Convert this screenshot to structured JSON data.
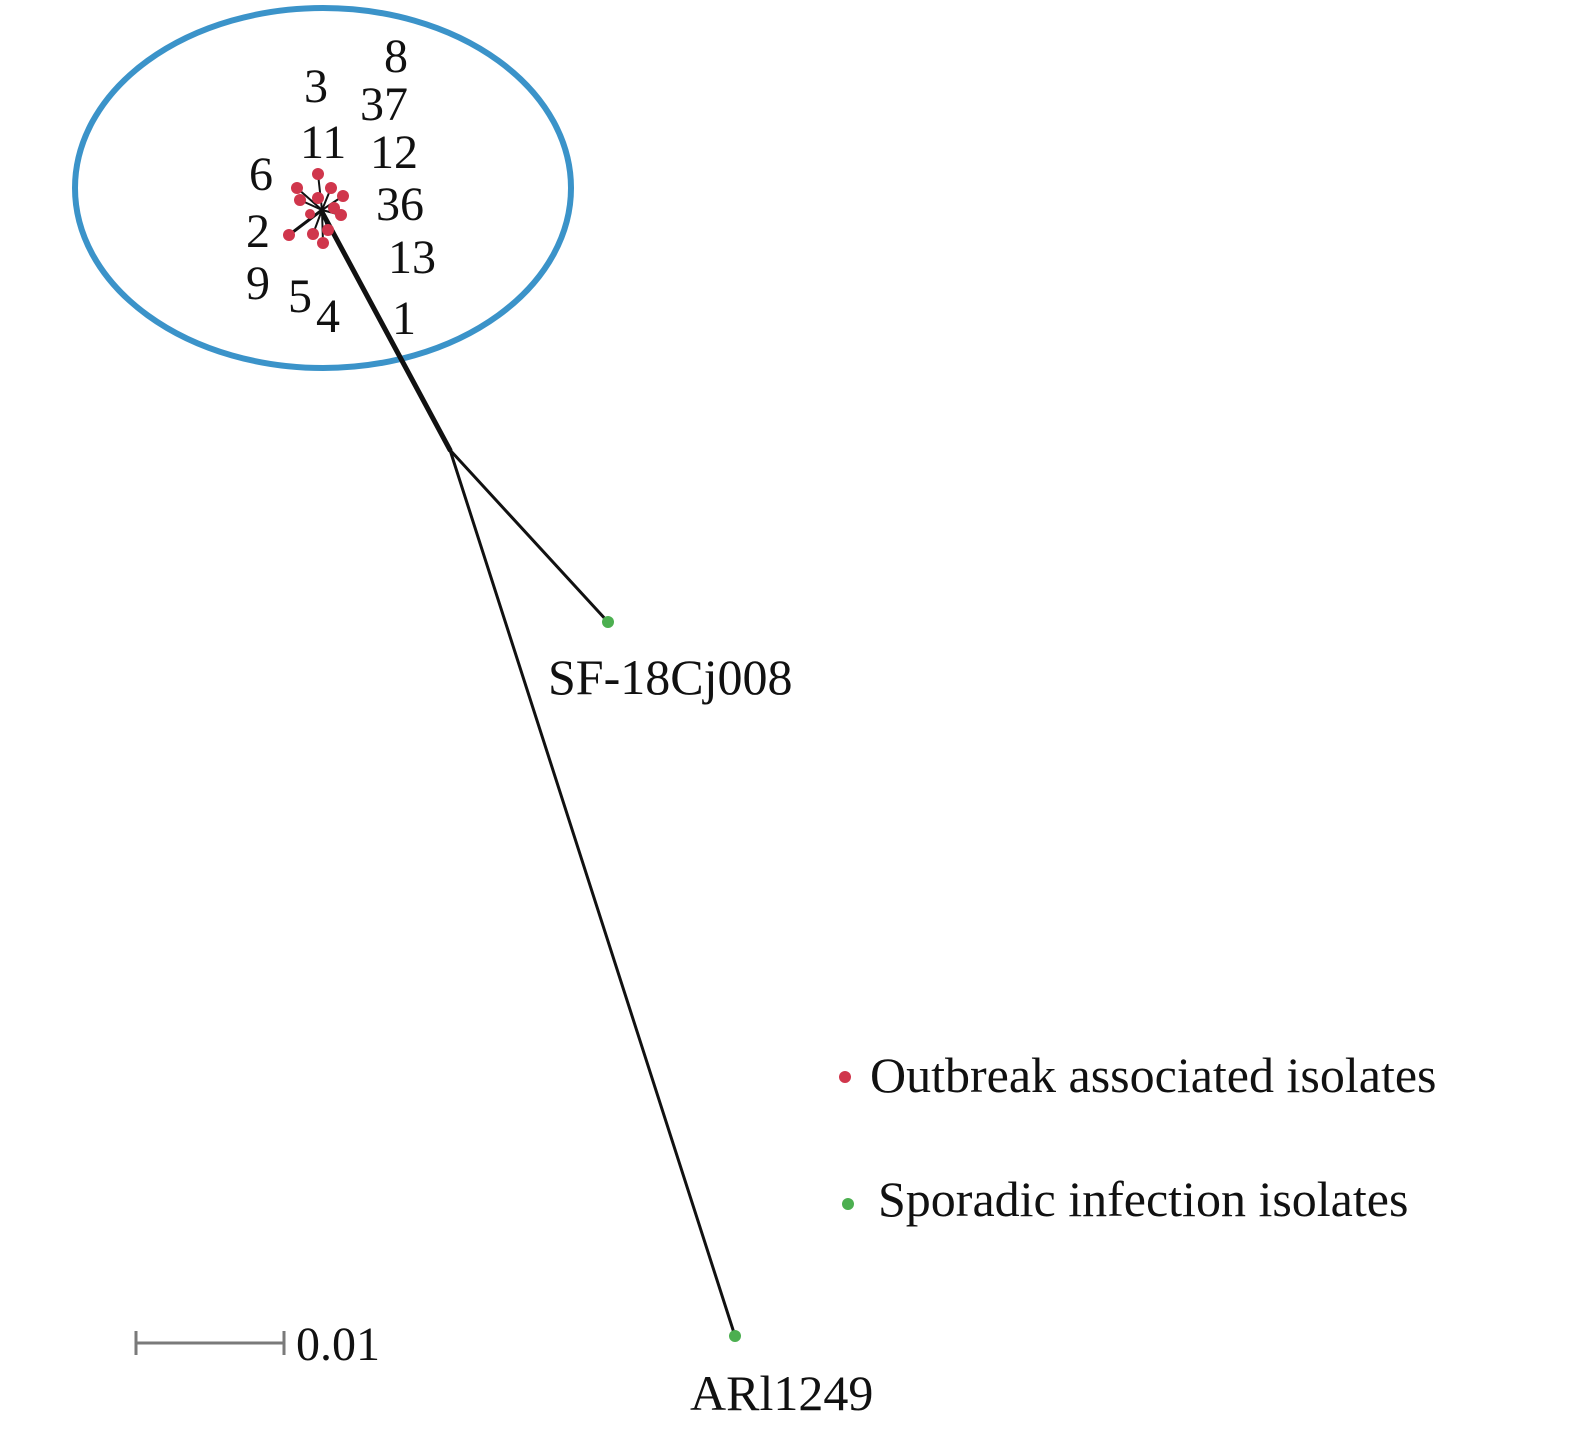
{
  "colors": {
    "cluster_ellipse": "#3b93c9",
    "outbreak_node": "#d0364c",
    "sporadic_node": "#4caf50",
    "branch": "#111111",
    "scale_bar": "#7a7a7a"
  },
  "outbreak_cluster": {
    "isolate_labels": [
      "8",
      "3",
      "37",
      "11",
      "12",
      "6",
      "36",
      "2",
      "13",
      "9",
      "5",
      "4",
      "1"
    ]
  },
  "sporadic_isolates": {
    "sf18cj008": "SF-18Cj008",
    "arl1249": "ARl1249"
  },
  "legend": {
    "outbreak": "Outbreak associated isolates",
    "sporadic": "Sporadic infection isolates"
  },
  "scale_bar": {
    "value": 0.01,
    "label": "0.01"
  }
}
